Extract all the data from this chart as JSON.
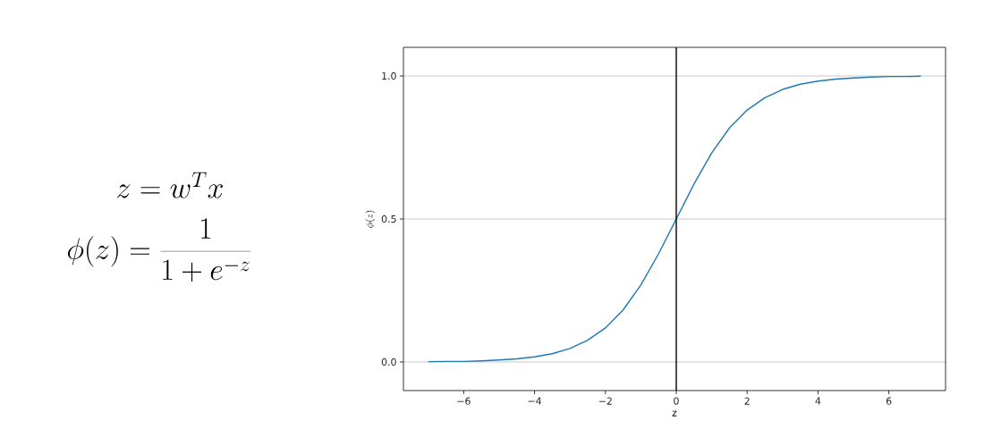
{
  "chart_data": {
    "type": "line",
    "xlabel": "z",
    "ylabel": "\\phi(z)",
    "annotations": [
      "z = w^{T} x",
      "\\phi(z) = \\frac{1}{1 + e^{-z}}"
    ],
    "x": [
      -7,
      -6.5,
      -6,
      -5.5,
      -5,
      -4.5,
      -4,
      -3.5,
      -3,
      -2.5,
      -2,
      -1.5,
      -1,
      -0.5,
      0,
      0.5,
      1,
      1.5,
      2,
      2.5,
      3,
      3.5,
      4,
      4.5,
      5,
      5.5,
      6,
      6.5,
      6.9
    ],
    "series": [
      {
        "color": "#1f77b4",
        "values": [
          0.001,
          0.002,
          0.002,
          0.004,
          0.007,
          0.011,
          0.018,
          0.029,
          0.047,
          0.076,
          0.119,
          0.182,
          0.269,
          0.378,
          0.5,
          0.622,
          0.731,
          0.818,
          0.881,
          0.924,
          0.953,
          0.971,
          0.982,
          0.989,
          0.993,
          0.996,
          0.998,
          0.998,
          0.999
        ]
      }
    ],
    "xlim": [
      -7.7,
      7.6
    ],
    "ylim": [
      -0.1,
      1.1
    ],
    "xticks": [
      {
        "value": -6,
        "label": "−6"
      },
      {
        "value": -4,
        "label": "−4"
      },
      {
        "value": -2,
        "label": "−2"
      },
      {
        "value": 0,
        "label": "0"
      },
      {
        "value": 2,
        "label": "2"
      },
      {
        "value": 4,
        "label": "4"
      },
      {
        "value": 6,
        "label": "6"
      }
    ],
    "yticks": [
      {
        "value": 0,
        "label": "0.0"
      },
      {
        "value": 0.5,
        "label": "0.5"
      },
      {
        "value": 1,
        "label": "1.0"
      }
    ],
    "ref_lines": [
      {
        "axis": "x",
        "value": 0,
        "color": "#000000"
      }
    ],
    "grid": "y",
    "marker": "none",
    "line_style": "solid"
  }
}
